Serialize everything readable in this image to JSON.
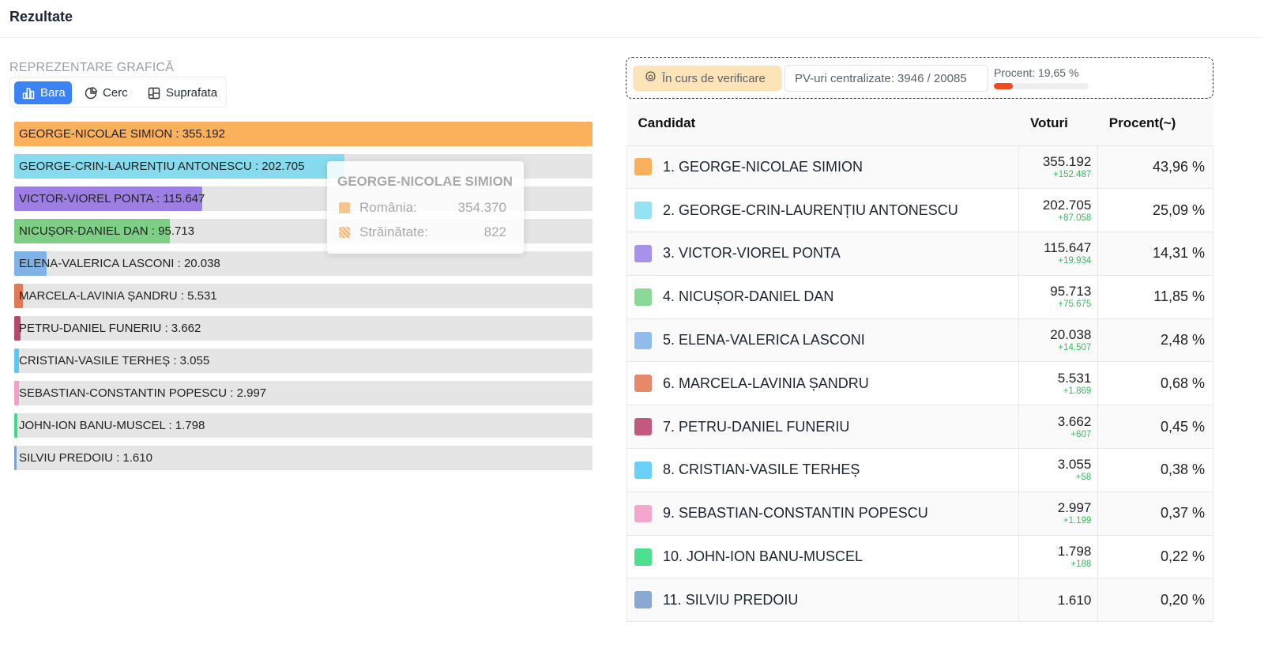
{
  "header": {
    "title": "Rezultate"
  },
  "chart_section": {
    "label": "REPREZENTARE GRAFICĂ",
    "tabs": [
      {
        "label": "Bara",
        "icon": "bar-chart-icon",
        "active": true
      },
      {
        "label": "Cerc",
        "icon": "pie-chart-icon",
        "active": false
      },
      {
        "label": "Suprafata",
        "icon": "treemap-icon",
        "active": false
      }
    ]
  },
  "chart_data": {
    "type": "bar",
    "orientation": "horizontal",
    "categories": [
      "GEORGE-NICOLAE SIMION",
      "GEORGE-CRIN-LAURENȚIU ANTONESCU",
      "VICTOR-VIOREL PONTA",
      "NICUȘOR-DANIEL DAN",
      "ELENA-VALERICA LASCONI",
      "MARCELA-LAVINIA ȘANDRU",
      "PETRU-DANIEL FUNERIU",
      "CRISTIAN-VASILE TERHEȘ",
      "SEBASTIAN-CONSTANTIN POPESCU",
      "JOHN-ION BANU-MUSCEL",
      "SILVIU PREDOIU"
    ],
    "values": [
      355192,
      202705,
      115647,
      95713,
      20038,
      5531,
      3662,
      3055,
      2997,
      1798,
      1610
    ],
    "value_labels": [
      "355.192",
      "202.705",
      "115.647",
      "95.713",
      "20.038",
      "5.531",
      "3.662",
      "3.055",
      "2.997",
      "1.798",
      "1.610"
    ],
    "colors": [
      "#fbb05c",
      "#86dcee",
      "#9d7fe3",
      "#7ecf86",
      "#7fb2e6",
      "#e07a56",
      "#b5486b",
      "#5ac8f5",
      "#f0a0c8",
      "#3ddc84",
      "#7fa3cf"
    ],
    "xlim": [
      0,
      355192
    ],
    "tooltip": {
      "title": "GEORGE-NICOLAE SIMION",
      "rows": [
        {
          "name": "România:",
          "value": "354.370",
          "color": "#fbb05c"
        },
        {
          "name": "Străinătate:",
          "value": "822",
          "color": "#f3a15a"
        }
      ]
    }
  },
  "status": {
    "badge": "În curs de verificare",
    "pv_text": "PV-uri centralizate: 3946 / 20085",
    "progress_text": "Procent: 19,65 %",
    "progress_fraction": 0.1965
  },
  "table": {
    "headers": {
      "candidate": "Candidat",
      "votes": "Voturi",
      "percent": "Procent(~)"
    },
    "rows": [
      {
        "name": "1. GEORGE-NICOLAE SIMION",
        "votes": "355.192",
        "delta": "+152.487",
        "percent": "43,96 %",
        "color": "#fbb05c"
      },
      {
        "name": "2. GEORGE-CRIN-LAURENȚIU ANTONESCU",
        "votes": "202.705",
        "delta": "+87.058",
        "percent": "25,09 %",
        "color": "#93e3f2"
      },
      {
        "name": "3. VICTOR-VIOREL PONTA",
        "votes": "115.647",
        "delta": "+19.934",
        "percent": "14,31 %",
        "color": "#a891ed"
      },
      {
        "name": "4. NICUȘOR-DANIEL DAN",
        "votes": "95.713",
        "delta": "+75.675",
        "percent": "11,85 %",
        "color": "#8ad996"
      },
      {
        "name": "5. ELENA-VALERICA LASCONI",
        "votes": "20.038",
        "delta": "+14.507",
        "percent": "2,48 %",
        "color": "#8fbcec"
      },
      {
        "name": "6. MARCELA-LAVINIA ȘANDRU",
        "votes": "5.531",
        "delta": "+1.869",
        "percent": "0,68 %",
        "color": "#e6886a"
      },
      {
        "name": "7. PETRU-DANIEL FUNERIU",
        "votes": "3.662",
        "delta": "+607",
        "percent": "0,45 %",
        "color": "#c25a7f"
      },
      {
        "name": "8. CRISTIAN-VASILE TERHEȘ",
        "votes": "3.055",
        "delta": "+58",
        "percent": "0,38 %",
        "color": "#6ad2f8"
      },
      {
        "name": "9. SEBASTIAN-CONSTANTIN POPESCU",
        "votes": "2.997",
        "delta": "+1.199",
        "percent": "0,37 %",
        "color": "#f4a6cd"
      },
      {
        "name": "10. JOHN-ION BANU-MUSCEL",
        "votes": "1.798",
        "delta": "+188",
        "percent": "0,22 %",
        "color": "#4ce08e"
      },
      {
        "name": "11. SILVIU PREDOIU",
        "votes": "1.610",
        "delta": "",
        "percent": "0,20 %",
        "color": "#8aa9d2"
      }
    ]
  }
}
